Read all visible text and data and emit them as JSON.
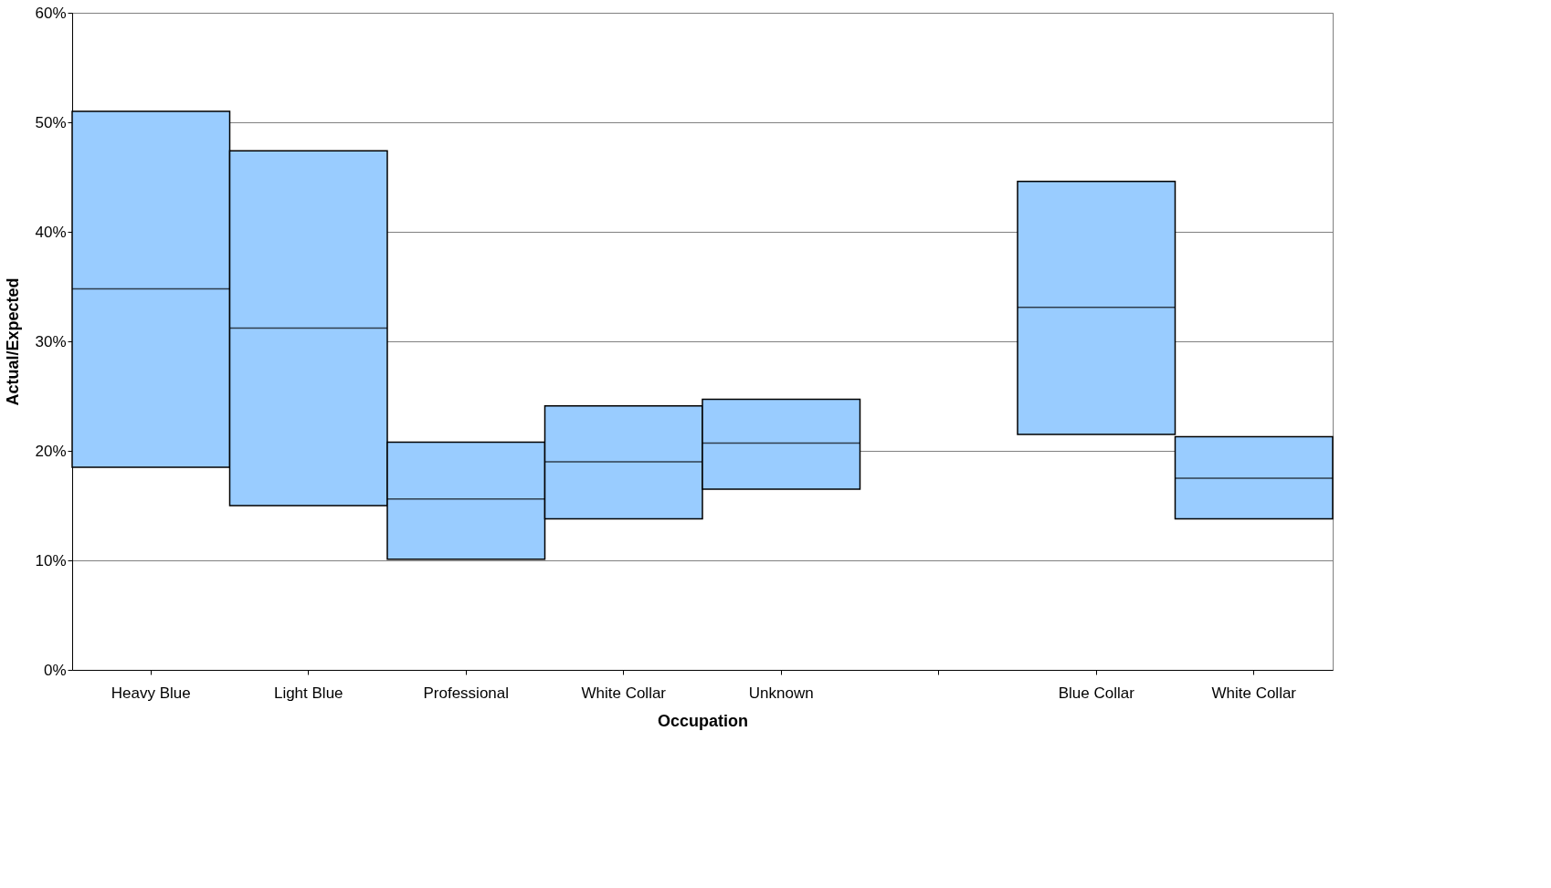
{
  "chart_data": {
    "type": "box",
    "xlabel": "Occupation",
    "ylabel": "Actual/Expected",
    "categories": [
      "Heavy Blue",
      "Light Blue",
      "Professional",
      "White Collar",
      "Unknown",
      null,
      "Blue Collar",
      "White Collar"
    ],
    "boxes": [
      {
        "low": 18.5,
        "q1": 18.5,
        "median": 34.8,
        "q3": 51.0,
        "high": 51.0
      },
      {
        "low": 15.0,
        "q1": 15.0,
        "median": 31.2,
        "q3": 47.4,
        "high": 47.4
      },
      {
        "low": 10.1,
        "q1": 10.1,
        "median": 15.6,
        "q3": 20.8,
        "high": 20.8
      },
      {
        "low": 13.8,
        "q1": 13.8,
        "median": 19.0,
        "q3": 24.1,
        "high": 24.1
      },
      {
        "low": 16.5,
        "q1": 16.5,
        "median": 20.7,
        "q3": 24.7,
        "high": 24.7
      },
      null,
      {
        "low": 21.5,
        "q1": 21.5,
        "median": 33.1,
        "q3": 44.6,
        "high": 44.6
      },
      {
        "low": 13.8,
        "q1": 13.8,
        "median": 17.5,
        "q3": 21.3,
        "high": 21.3
      }
    ],
    "color": "#99ccff",
    "ylim": [
      0,
      60
    ],
    "yticks": [
      {
        "value": 0,
        "label": "0%"
      },
      {
        "value": 10,
        "label": "10%"
      },
      {
        "value": 20,
        "label": "20%"
      },
      {
        "value": 30,
        "label": "30%"
      },
      {
        "value": 40,
        "label": "40%"
      },
      {
        "value": 50,
        "label": "50%"
      },
      {
        "value": 60,
        "label": "60%"
      }
    ],
    "grid": "y"
  }
}
